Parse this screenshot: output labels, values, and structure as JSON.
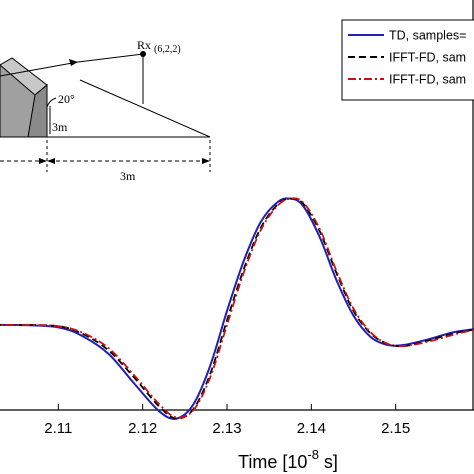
{
  "chart_data": {
    "type": "line",
    "xlabel_main": "Time [10",
    "xlabel_exp": "-8",
    "xlabel_unit": " s]",
    "xlim": [
      2.1,
      2.16
    ],
    "ylim": [
      -1.0,
      1.1
    ],
    "x_ticks": [
      {
        "value": 2.11,
        "label": "2.11"
      },
      {
        "value": 2.12,
        "label": "2.12"
      },
      {
        "value": 2.13,
        "label": "2.13"
      },
      {
        "value": 2.14,
        "label": "2.14"
      },
      {
        "value": 2.15,
        "label": "2.15"
      }
    ],
    "legend_position": "top-right",
    "series": [
      {
        "name": "TD, samples=",
        "color": "#1f1fb4",
        "style": "solid",
        "x": [
          2.1,
          2.105,
          2.11,
          2.113,
          2.116,
          2.119,
          2.122,
          2.124,
          2.126,
          2.128,
          2.13,
          2.132,
          2.134,
          2.136,
          2.1375,
          2.139,
          2.141,
          2.143,
          2.145,
          2.147,
          2.149,
          2.151,
          2.154,
          2.157,
          2.16
        ],
        "y": [
          0.0,
          0.0,
          -0.02,
          -0.1,
          -0.25,
          -0.5,
          -0.74,
          -0.8,
          -0.68,
          -0.35,
          0.12,
          0.55,
          0.88,
          1.05,
          1.08,
          1.02,
          0.75,
          0.38,
          0.08,
          -0.1,
          -0.17,
          -0.17,
          -0.12,
          -0.06,
          -0.03
        ]
      },
      {
        "name": "IFFT-FD, sam",
        "color": "#000000",
        "style": "dashed",
        "x": [
          2.1,
          2.105,
          2.11,
          2.113,
          2.116,
          2.119,
          2.122,
          2.124,
          2.126,
          2.128,
          2.13,
          2.132,
          2.134,
          2.136,
          2.1375,
          2.139,
          2.141,
          2.143,
          2.145,
          2.147,
          2.149,
          2.151,
          2.154,
          2.157,
          2.16
        ],
        "y": [
          0.0,
          0.0,
          -0.01,
          -0.08,
          -0.22,
          -0.45,
          -0.7,
          -0.8,
          -0.72,
          -0.42,
          0.04,
          0.48,
          0.83,
          1.03,
          1.08,
          1.04,
          0.8,
          0.44,
          0.12,
          -0.07,
          -0.16,
          -0.18,
          -0.13,
          -0.07,
          -0.03
        ]
      },
      {
        "name": "IFFT-FD, sam",
        "color": "#d01010",
        "style": "dashdot",
        "x": [
          2.1,
          2.105,
          2.11,
          2.113,
          2.116,
          2.119,
          2.122,
          2.124,
          2.126,
          2.128,
          2.13,
          2.132,
          2.134,
          2.136,
          2.1375,
          2.139,
          2.141,
          2.143,
          2.145,
          2.147,
          2.149,
          2.151,
          2.154,
          2.157,
          2.16
        ],
        "y": [
          0.0,
          0.0,
          -0.01,
          -0.07,
          -0.2,
          -0.43,
          -0.68,
          -0.79,
          -0.73,
          -0.45,
          0.0,
          0.45,
          0.81,
          1.02,
          1.08,
          1.05,
          0.82,
          0.46,
          0.14,
          -0.06,
          -0.16,
          -0.18,
          -0.14,
          -0.08,
          -0.03
        ]
      }
    ]
  },
  "inset": {
    "receiver_label": "Rx",
    "receiver_coords": "(6,2,2)",
    "angle_label": "20°",
    "height_label": "3m",
    "distance_label": "3m",
    "wedge_color": "#a8a8a8"
  }
}
